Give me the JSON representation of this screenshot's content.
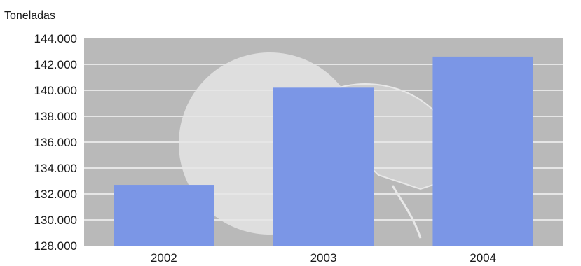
{
  "chart_data": {
    "type": "bar",
    "ylabel": "Toneladas",
    "categories": [
      "2002",
      "2003",
      "2004"
    ],
    "values": [
      132700,
      140200,
      142600
    ],
    "yticks": [
      "144.000",
      "142.000",
      "140.000",
      "138.000",
      "136.000",
      "134.000",
      "132.000",
      "130.000",
      "128.000"
    ],
    "ylim": [
      128000,
      144000
    ],
    "grid": true,
    "colors": {
      "bar": "#7b96e6",
      "plot_bg": "#b9b9b9",
      "grid": "#e6e6e6",
      "decoration": "#dedede"
    }
  }
}
